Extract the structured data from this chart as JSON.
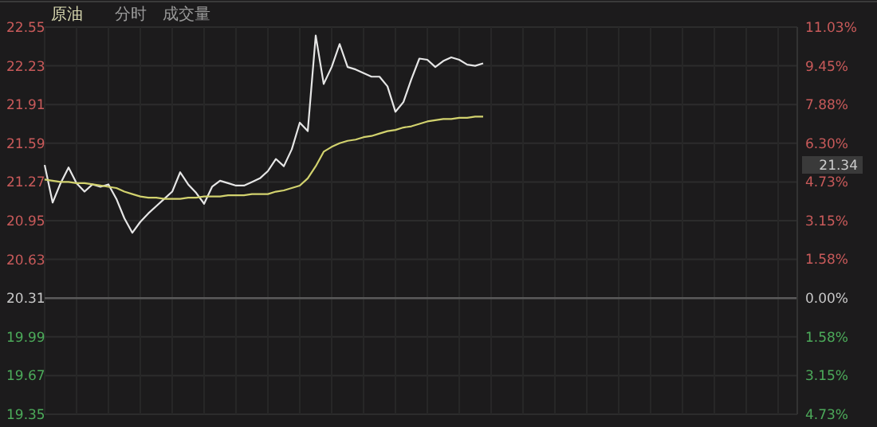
{
  "chart_data": {
    "type": "line",
    "title": "原油",
    "annotations": [
      "分时",
      "成交量",
      "21.34"
    ],
    "categories": [
      null,
      null,
      null,
      null,
      null,
      null,
      null,
      null,
      null,
      null,
      null,
      null,
      null,
      null,
      null,
      null,
      null,
      null,
      null,
      null,
      null,
      null,
      null,
      null,
      null,
      null,
      null,
      null,
      null,
      null,
      null,
      null,
      null,
      null,
      null,
      null,
      null,
      null,
      null,
      null,
      null,
      null,
      null,
      null,
      null,
      null,
      null,
      null,
      null,
      null,
      null,
      null,
      null,
      null,
      null,
      null,
      null,
      null,
      null,
      null,
      null,
      null,
      null,
      null,
      null,
      null,
      null,
      null,
      null,
      null,
      null,
      null,
      null,
      null,
      null,
      null,
      null,
      null,
      null,
      null,
      null,
      null,
      null,
      null,
      null,
      null,
      null,
      null,
      null,
      null,
      null,
      null,
      null,
      null,
      null
    ],
    "ylim": [
      19.35,
      22.55
    ],
    "yticks": [
      19.35,
      19.67,
      19.99,
      20.31,
      20.63,
      20.95,
      21.27,
      21.59,
      21.91,
      22.23,
      22.55
    ],
    "y2lim": [
      -4.73,
      11.03
    ],
    "y2ticks": [
      {
        "value": -4.73,
        "label": "4.73%"
      },
      {
        "value": -3.15,
        "label": "3.15%"
      },
      {
        "value": -1.58,
        "label": "1.58%"
      },
      {
        "value": 0,
        "label": "0.00%"
      },
      {
        "value": 1.58,
        "label": "1.58%"
      },
      {
        "value": 3.15,
        "label": "3.15%"
      },
      {
        "value": 4.73,
        "label": "4.73%"
      },
      {
        "value": 6.3,
        "label": "6.30%"
      },
      {
        "value": 7.88,
        "label": "7.88%"
      },
      {
        "value": 9.45,
        "label": "9.45%"
      },
      {
        "value": 11.03,
        "label": "11.03%"
      }
    ],
    "grid": true,
    "marker": "none",
    "line_style": "solid",
    "ref_lines": [
      {
        "axis": "y",
        "value": 20.31,
        "label": null,
        "color": "#5a5a5a"
      }
    ],
    "series": [
      {
        "color": "#e6e6e6",
        "values": [
          21.41,
          21.1,
          21.26,
          21.39,
          21.26,
          21.19,
          21.25,
          21.23,
          21.25,
          21.13,
          20.97,
          20.85,
          20.94,
          21.01,
          21.07,
          21.13,
          21.19,
          21.35,
          21.25,
          21.18,
          21.09,
          21.23,
          21.28,
          21.26,
          21.24,
          21.24,
          21.27,
          21.3,
          21.36,
          21.46,
          21.4,
          21.54,
          21.76,
          21.69,
          22.48,
          22.08,
          22.22,
          22.41,
          22.22,
          22.2,
          22.17,
          22.14,
          22.14,
          22.06,
          21.85,
          21.93,
          22.12,
          22.29,
          22.28,
          22.22,
          22.27,
          22.3,
          22.28,
          22.24,
          22.23,
          22.25,
          null,
          null,
          null,
          null,
          null,
          null,
          null,
          null,
          null,
          null,
          null,
          null,
          null,
          null,
          null,
          null,
          null,
          null,
          null,
          null,
          null,
          null,
          null,
          null,
          null,
          null,
          null,
          null,
          null,
          null,
          null,
          null,
          null,
          null,
          null,
          null,
          null,
          null,
          null
        ]
      },
      {
        "color": "#d2d26e",
        "values": [
          21.29,
          21.28,
          21.27,
          21.27,
          21.26,
          21.26,
          21.25,
          21.24,
          21.23,
          21.22,
          21.19,
          21.17,
          21.15,
          21.14,
          21.14,
          21.13,
          21.13,
          21.13,
          21.14,
          21.14,
          21.15,
          21.15,
          21.15,
          21.16,
          21.16,
          21.16,
          21.17,
          21.17,
          21.17,
          21.19,
          21.2,
          21.22,
          21.24,
          21.3,
          21.4,
          21.52,
          21.56,
          21.59,
          21.61,
          21.62,
          21.64,
          21.65,
          21.67,
          21.69,
          21.7,
          21.72,
          21.73,
          21.75,
          21.77,
          21.78,
          21.79,
          21.79,
          21.8,
          21.8,
          21.81,
          21.81,
          null,
          null,
          null,
          null,
          null,
          null,
          null,
          null,
          null,
          null,
          null,
          null,
          null,
          null,
          null,
          null,
          null,
          null,
          null,
          null,
          null,
          null,
          null,
          null,
          null,
          null,
          null,
          null,
          null,
          null,
          null,
          null,
          null,
          null,
          null,
          null,
          null,
          null,
          null
        ]
      }
    ]
  }
}
